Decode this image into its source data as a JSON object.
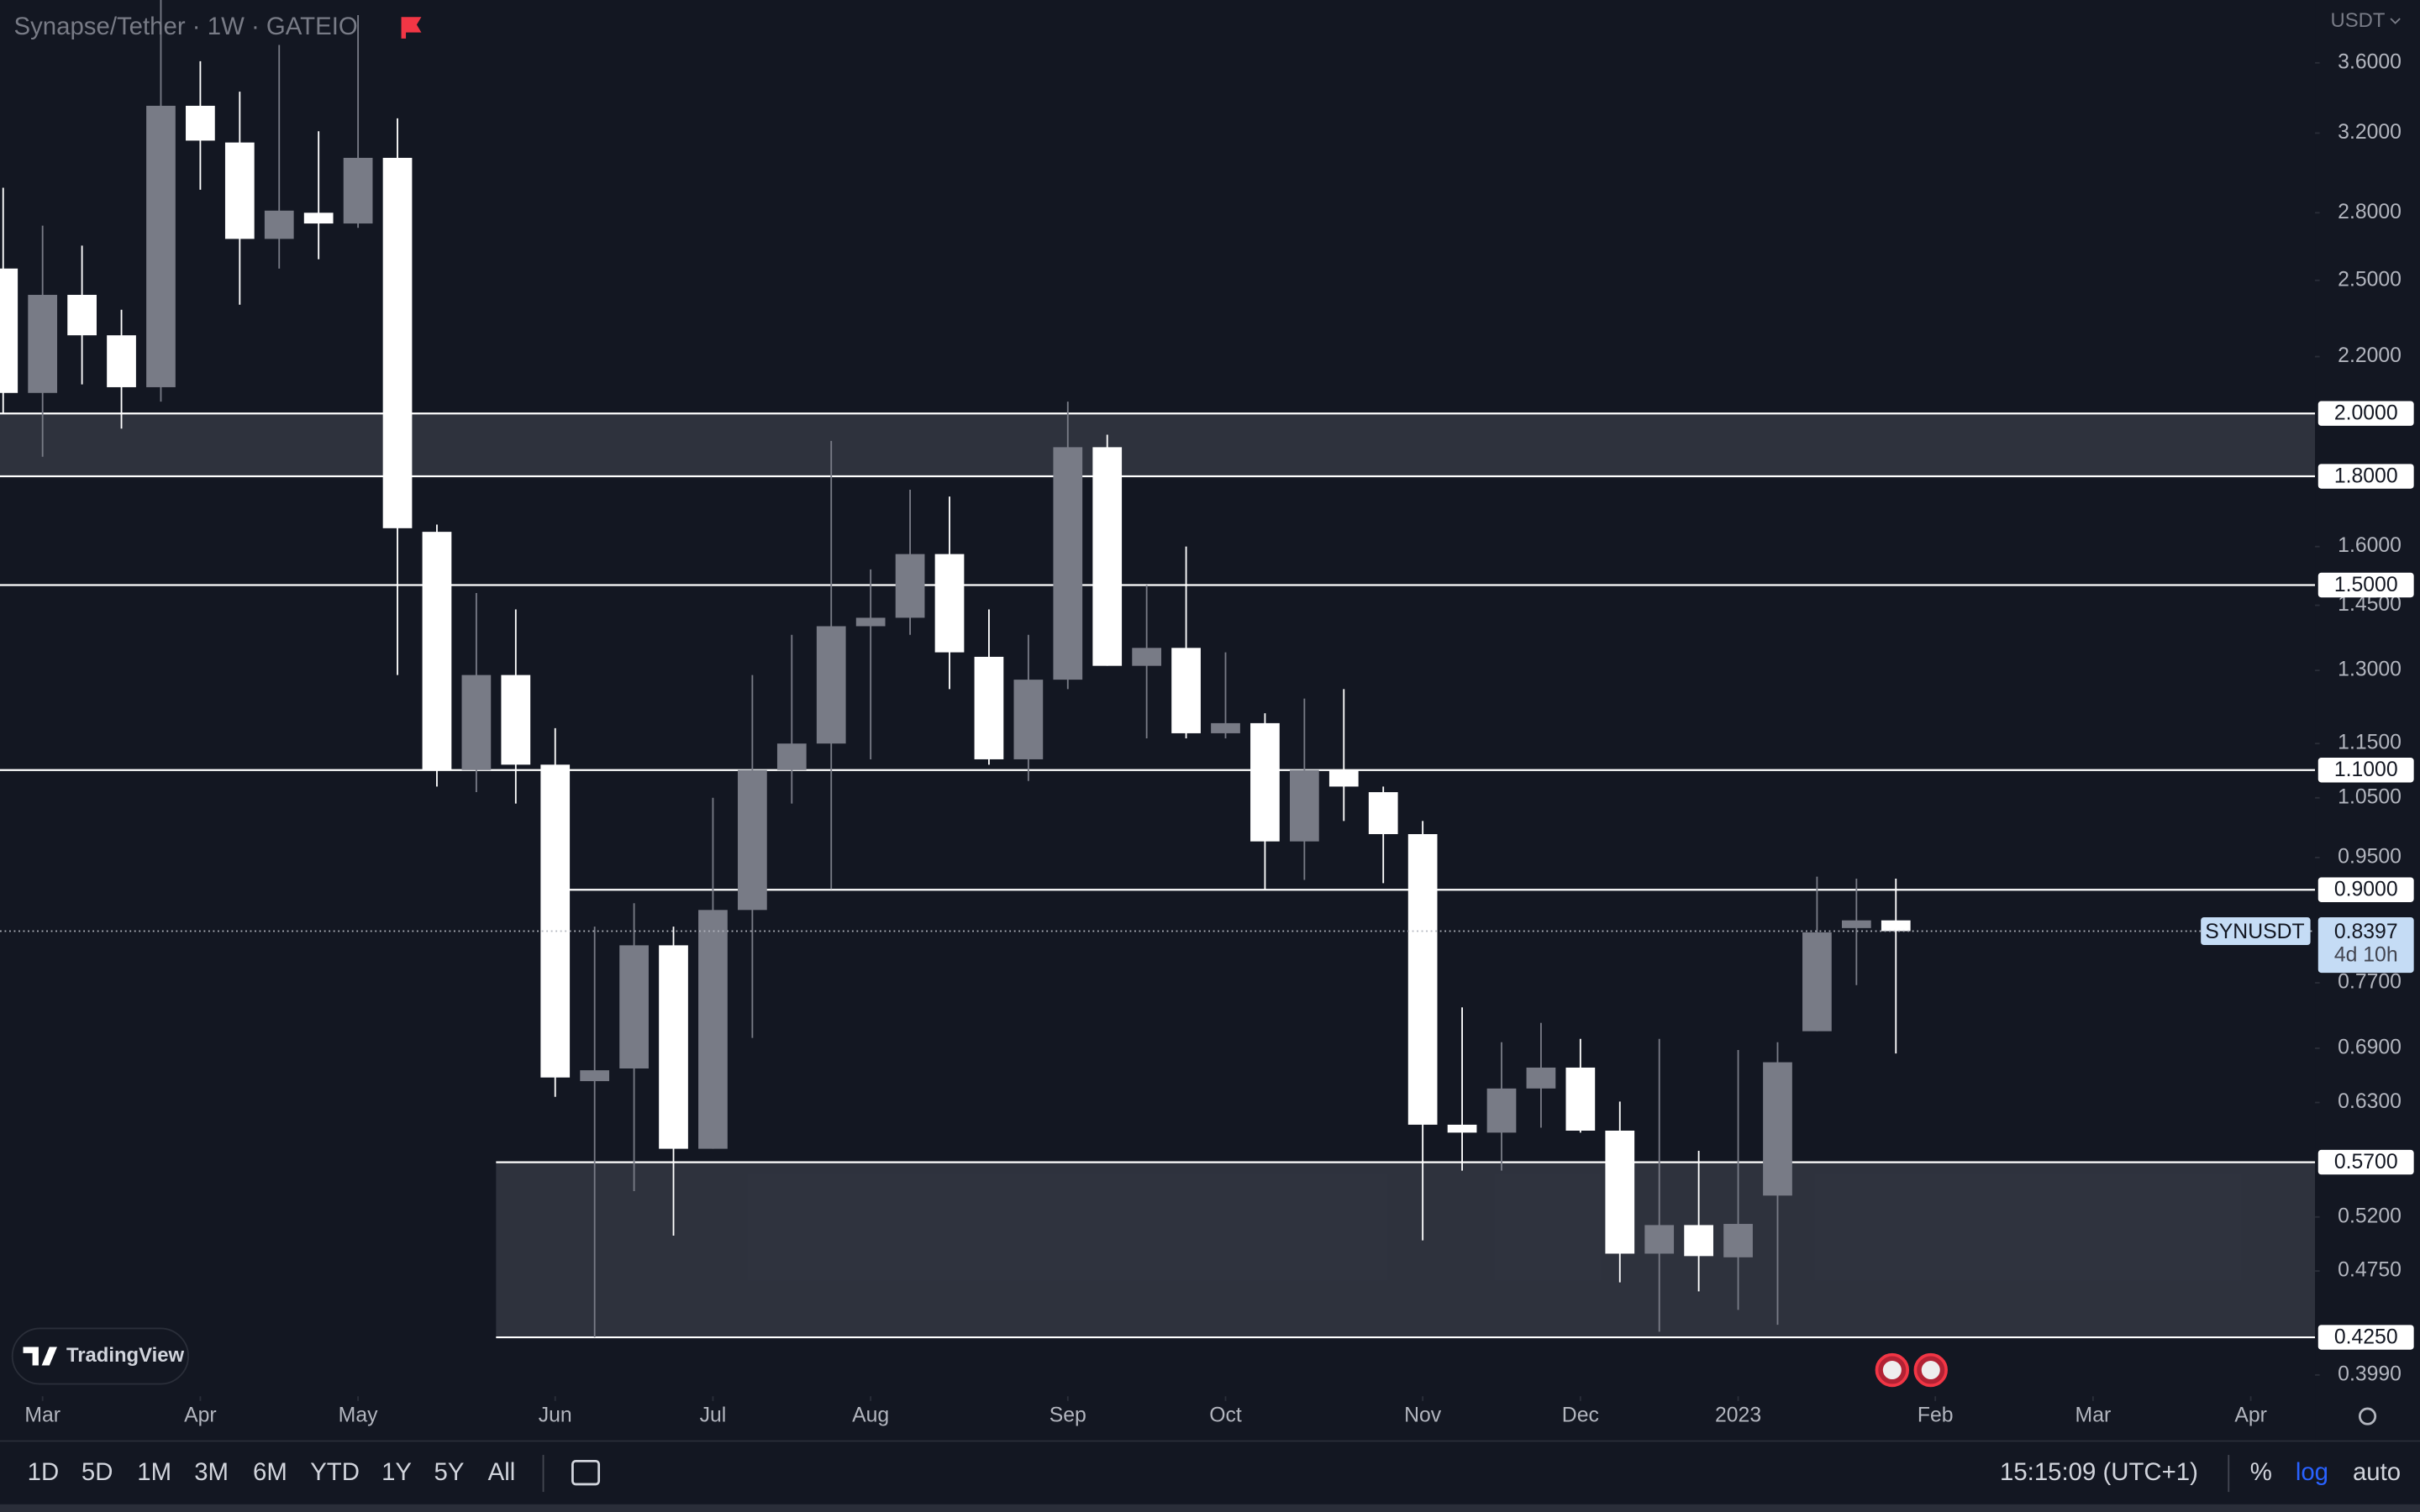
{
  "header": {
    "title": "Synapse/Tether · 1W · GATEIO",
    "currency": "USDT"
  },
  "brand": "TradingView",
  "toolbar": {
    "ranges": [
      "1D",
      "5D",
      "1M",
      "3M",
      "6M",
      "YTD",
      "1Y",
      "5Y",
      "All"
    ],
    "time": "15:15:09 (UTC+1)",
    "percent": "%",
    "log": "log",
    "auto": "auto"
  },
  "chart_data": {
    "type": "candlestick",
    "log_scale": true,
    "up_color": "#787b86",
    "down_color": "#ffffff",
    "open": [
      2.55,
      2.07,
      2.44,
      2.28,
      2.09,
      3.35,
      3.15,
      2.68,
      2.8,
      2.75,
      3.07,
      1.64,
      1.1,
      1.29,
      1.11,
      0.653,
      0.667,
      0.82,
      0.583,
      0.87,
      1.1,
      1.15,
      1.4,
      1.42,
      1.58,
      1.33,
      1.12,
      1.28,
      1.89,
      1.31,
      1.35,
      1.17,
      1.19,
      0.976,
      1.1,
      1.06,
      0.988,
      0.607,
      0.599,
      0.645,
      0.668,
      0.601,
      0.489,
      0.513,
      0.486,
      0.539,
      0.71,
      0.844,
      0.855
    ],
    "high": [
      2.92,
      2.74,
      2.65,
      2.38,
      4.0,
      3.61,
      3.43,
      3.71,
      3.21,
      3.9,
      3.28,
      1.66,
      1.48,
      1.44,
      1.18,
      0.846,
      0.88,
      0.846,
      1.05,
      1.29,
      1.38,
      1.91,
      1.54,
      1.76,
      1.74,
      1.44,
      1.38,
      2.04,
      1.93,
      1.5,
      1.6,
      1.34,
      1.21,
      1.24,
      1.26,
      1.07,
      1.01,
      0.739,
      0.697,
      0.72,
      0.701,
      0.631,
      0.701,
      0.581,
      0.688,
      0.697,
      0.92,
      0.917,
      0.917
    ],
    "low": [
      2.0,
      1.86,
      2.1,
      1.95,
      2.04,
      2.91,
      2.4,
      2.55,
      2.59,
      2.73,
      1.29,
      1.07,
      1.06,
      1.04,
      0.636,
      0.425,
      0.543,
      0.504,
      0.583,
      0.702,
      1.04,
      0.901,
      1.12,
      1.38,
      1.26,
      1.11,
      1.08,
      1.26,
      1.31,
      1.16,
      1.16,
      1.16,
      0.901,
      0.915,
      1.01,
      0.91,
      0.5,
      0.562,
      0.562,
      0.604,
      0.599,
      0.466,
      0.429,
      0.459,
      0.445,
      0.434,
      0.71,
      0.767,
      0.684
    ],
    "close": [
      2.07,
      2.44,
      2.28,
      2.09,
      3.35,
      3.16,
      2.68,
      2.81,
      2.75,
      3.07,
      1.65,
      1.1,
      1.29,
      1.11,
      0.657,
      0.665,
      0.82,
      0.583,
      0.87,
      1.1,
      1.15,
      1.4,
      1.42,
      1.58,
      1.34,
      1.12,
      1.28,
      1.89,
      1.31,
      1.35,
      1.17,
      1.19,
      0.976,
      1.1,
      1.07,
      0.988,
      0.607,
      0.599,
      0.645,
      0.668,
      0.601,
      0.489,
      0.513,
      0.487,
      0.514,
      0.674,
      0.838,
      0.855,
      0.8397
    ],
    "xlim": [
      -0.08,
      58.63
    ],
    "xticks": [
      {
        "value": 1,
        "label": "Mar"
      },
      {
        "value": 5,
        "label": "Apr"
      },
      {
        "value": 9,
        "label": "May"
      },
      {
        "value": 14,
        "label": "Jun"
      },
      {
        "value": 18,
        "label": "Jul"
      },
      {
        "value": 22,
        "label": "Aug"
      },
      {
        "value": 27,
        "label": "Sep"
      },
      {
        "value": 31,
        "label": "Oct"
      },
      {
        "value": 36,
        "label": "Nov"
      },
      {
        "value": 40,
        "label": "Dec"
      },
      {
        "value": 44,
        "label": "2023"
      },
      {
        "value": 49,
        "label": "Feb"
      },
      {
        "value": 53,
        "label": "Mar"
      },
      {
        "value": 57,
        "label": "Apr"
      }
    ],
    "ylim": [
      0.385,
      4.0
    ],
    "yticks": [
      {
        "value": 3.6,
        "label": "3.6000"
      },
      {
        "value": 3.2,
        "label": "3.2000"
      },
      {
        "value": 2.8,
        "label": "2.8000"
      },
      {
        "value": 2.5,
        "label": "2.5000"
      },
      {
        "value": 2.2,
        "label": "2.2000"
      },
      {
        "value": 1.6,
        "label": "1.6000"
      },
      {
        "value": 1.45,
        "label": "1.4500"
      },
      {
        "value": 1.3,
        "label": "1.3000"
      },
      {
        "value": 1.15,
        "label": "1.1500"
      },
      {
        "value": 1.05,
        "label": "1.0500"
      },
      {
        "value": 0.95,
        "label": "0.9500"
      },
      {
        "value": 0.77,
        "label": "0.7700"
      },
      {
        "value": 0.69,
        "label": "0.6900"
      },
      {
        "value": 0.63,
        "label": "0.6300"
      },
      {
        "value": 0.52,
        "label": "0.5200"
      },
      {
        "value": 0.475,
        "label": "0.4750"
      },
      {
        "value": 0.399,
        "label": "0.3990"
      }
    ],
    "zones": [
      {
        "low": 1.8,
        "high": 2.0
      },
      {
        "low": 0.425,
        "high": 0.57,
        "from": 13
      }
    ],
    "levels": [
      {
        "value": 2.0,
        "label": "2.0000"
      },
      {
        "value": 1.8,
        "label": "1.8000"
      },
      {
        "value": 1.5,
        "label": "1.5000"
      },
      {
        "value": 1.1,
        "label": "1.1000"
      },
      {
        "value": 0.9,
        "label": "0.9000",
        "from": 14.3
      },
      {
        "value": 0.57,
        "label": "0.5700",
        "from": 13
      },
      {
        "value": 0.425,
        "label": "0.4250",
        "from": 13
      }
    ],
    "last": {
      "value": 0.8397,
      "label": "0.8397",
      "symbol": "SYNUSDT",
      "countdown": "4d 10h"
    }
  }
}
